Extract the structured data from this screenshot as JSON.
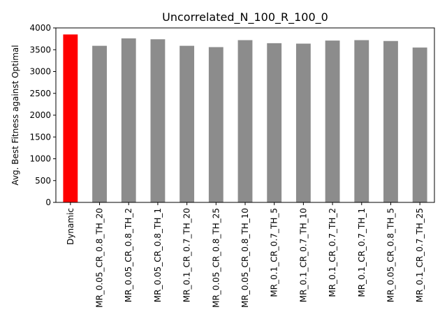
{
  "chart_data": {
    "type": "bar",
    "title": "Uncorrelated_N_100_R_100_0",
    "xlabel": "",
    "ylabel": "Avg. Best Fitness against Optimal",
    "ylim": [
      0,
      4000
    ],
    "yticks": [
      0,
      500,
      1000,
      1500,
      2000,
      2500,
      3000,
      3500,
      4000
    ],
    "categories": [
      "Dynamic",
      "MR_0.05_CR_0.8_TH_20",
      "MR_0.05_CR_0.8_TH_2",
      "MR_0.05_CR_0.8_TH_1",
      "MR_0.1_CR_0.7_TH_20",
      "MR_0.05_CR_0.8_TH_25",
      "MR_0.05_CR_0.8_TH_10",
      "MR_0.1_CR_0.7_TH_5",
      "MR_0.1_CR_0.7_TH_10",
      "MR_0.1_CR_0.7_TH_2",
      "MR_0.1_CR_0.7_TH_1",
      "MR_0.05_CR_0.8_TH_5",
      "MR_0.1_CR_0.7_TH_25"
    ],
    "values": [
      3850,
      3590,
      3760,
      3740,
      3590,
      3560,
      3720,
      3650,
      3640,
      3710,
      3720,
      3700,
      3550
    ],
    "bar_colors": [
      "#ff0000",
      "#8c8c8c",
      "#8c8c8c",
      "#8c8c8c",
      "#8c8c8c",
      "#8c8c8c",
      "#8c8c8c",
      "#8c8c8c",
      "#8c8c8c",
      "#8c8c8c",
      "#8c8c8c",
      "#8c8c8c",
      "#8c8c8c"
    ],
    "grid": false,
    "legend": "none"
  }
}
